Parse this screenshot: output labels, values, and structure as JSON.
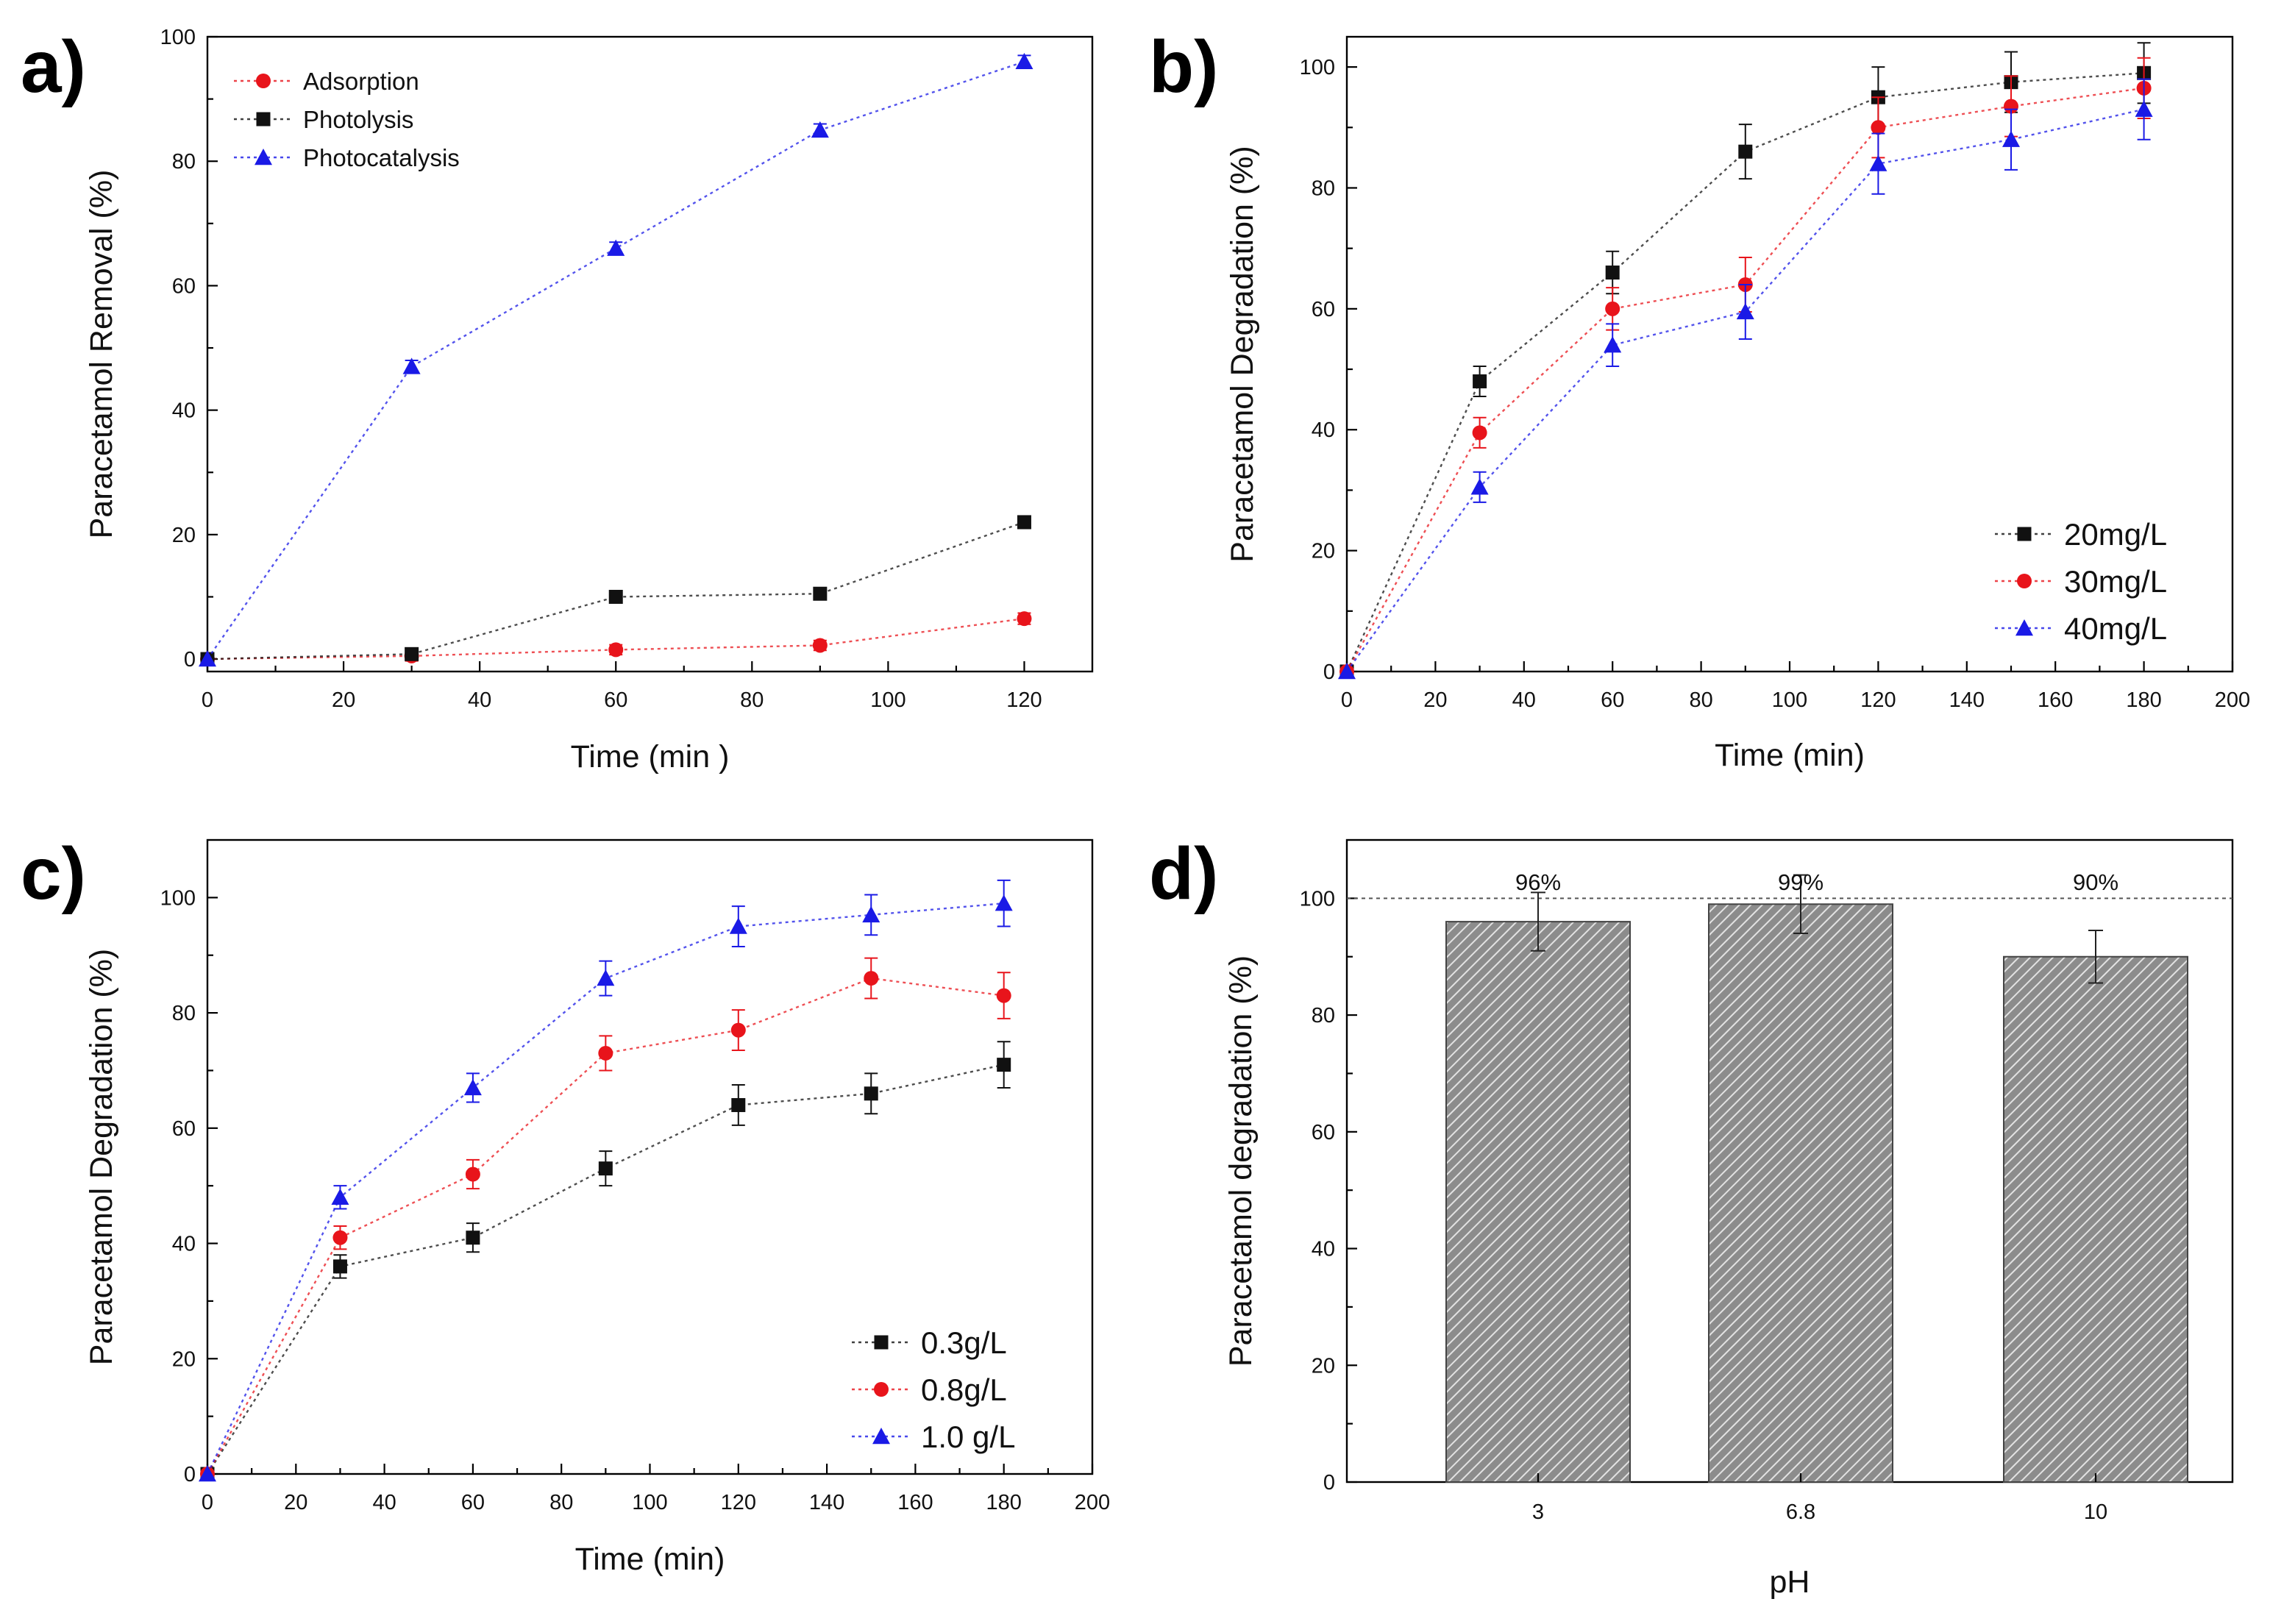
{
  "colors": {
    "black": "#111111",
    "red": "#e8141b",
    "blue": "#1a1ae6",
    "grid_dash": "#555555",
    "bar_fill": "#9a9a9a"
  },
  "chart_data": [
    {
      "panel": "a)",
      "type": "line",
      "xlabel": "Time (min )",
      "ylabel": "Paracetamol Removal (%)",
      "xlim": [
        0,
        130
      ],
      "ylim": [
        -2,
        100
      ],
      "xticks": [
        0,
        20,
        40,
        60,
        80,
        100,
        120
      ],
      "yticks": [
        0,
        20,
        40,
        60,
        80,
        100
      ],
      "legend_position": "top-left",
      "series": [
        {
          "name": "Adsorption",
          "color": "red",
          "marker": "circle",
          "x": [
            0,
            30,
            60,
            90,
            120
          ],
          "y": [
            0,
            0.5,
            1.5,
            2.2,
            6.5
          ],
          "err": [
            0,
            0.8,
            0.8,
            0.8,
            0.9
          ]
        },
        {
          "name": "Photolysis",
          "color": "black",
          "marker": "square",
          "x": [
            0,
            30,
            60,
            90,
            120
          ],
          "y": [
            0,
            0.8,
            10,
            10.5,
            22
          ],
          "err": [
            0,
            0.8,
            0.8,
            0.8,
            1.0
          ]
        },
        {
          "name": "Photocatalysis",
          "color": "blue",
          "marker": "triangle",
          "x": [
            0,
            30,
            60,
            90,
            120
          ],
          "y": [
            0,
            47,
            66,
            85,
            96
          ],
          "err": [
            0,
            1.0,
            1.0,
            1.0,
            1.0
          ]
        }
      ]
    },
    {
      "panel": "b)",
      "type": "line",
      "xlabel": "Time (min)",
      "ylabel": "Paracetamol Degradation (%)",
      "xlim": [
        0,
        200
      ],
      "ylim": [
        0,
        105
      ],
      "xticks": [
        0,
        20,
        40,
        60,
        80,
        100,
        120,
        140,
        160,
        180,
        200
      ],
      "yticks": [
        0,
        20,
        40,
        60,
        80,
        100
      ],
      "legend_position": "bottom-right",
      "series": [
        {
          "name": "20mg/L",
          "color": "black",
          "marker": "square",
          "x": [
            0,
            30,
            60,
            90,
            120,
            150,
            180
          ],
          "y": [
            0,
            48,
            66,
            86,
            95,
            97.5,
            99
          ],
          "err": [
            0,
            2.5,
            3.5,
            4.5,
            5,
            5,
            5
          ]
        },
        {
          "name": "30mg/L",
          "color": "red",
          "marker": "circle",
          "x": [
            0,
            30,
            60,
            90,
            120,
            150,
            180
          ],
          "y": [
            0,
            39.5,
            60,
            64,
            90,
            93.5,
            96.5
          ],
          "err": [
            0,
            2.5,
            3.5,
            4.5,
            5,
            5,
            5
          ]
        },
        {
          "name": "40mg/L",
          "color": "blue",
          "marker": "triangle",
          "x": [
            0,
            30,
            60,
            90,
            120,
            150,
            180
          ],
          "y": [
            0,
            30.5,
            54,
            59.5,
            84,
            88,
            93
          ],
          "err": [
            0,
            2.5,
            3.5,
            4.5,
            5,
            5,
            5
          ]
        }
      ]
    },
    {
      "panel": "c)",
      "type": "line",
      "xlabel": "Time (min)",
      "ylabel": "Paracetamol Degradation (%)",
      "xlim": [
        0,
        200
      ],
      "ylim": [
        0,
        110
      ],
      "xticks": [
        0,
        20,
        40,
        60,
        80,
        100,
        120,
        140,
        160,
        180,
        200
      ],
      "yticks": [
        0,
        20,
        40,
        60,
        80,
        100
      ],
      "legend_position": "bottom-right",
      "series": [
        {
          "name": "0.3g/L",
          "color": "black",
          "marker": "square",
          "x": [
            0,
            30,
            60,
            90,
            120,
            150,
            180
          ],
          "y": [
            0,
            36,
            41,
            53,
            64,
            66,
            71
          ],
          "err": [
            0,
            2,
            2.5,
            3,
            3.5,
            3.5,
            4
          ]
        },
        {
          "name": "0.8g/L",
          "color": "red",
          "marker": "circle",
          "x": [
            0,
            30,
            60,
            90,
            120,
            150,
            180
          ],
          "y": [
            0,
            41,
            52,
            73,
            77,
            86,
            83
          ],
          "err": [
            0,
            2,
            2.5,
            3,
            3.5,
            3.5,
            4
          ]
        },
        {
          "name": "1.0 g/L",
          "color": "blue",
          "marker": "triangle",
          "x": [
            0,
            30,
            60,
            90,
            120,
            150,
            180
          ],
          "y": [
            0,
            48,
            67,
            86,
            95,
            97,
            99
          ],
          "err": [
            0,
            2,
            2.5,
            3,
            3.5,
            3.5,
            4
          ]
        }
      ]
    },
    {
      "panel": "d)",
      "type": "bar",
      "xlabel": "pH",
      "ylabel": "Paracetamol degradation (%)",
      "ylim": [
        0,
        110
      ],
      "yticks": [
        0,
        20,
        40,
        60,
        80,
        100
      ],
      "reference_line": 100,
      "categories": [
        "3",
        "6.8",
        "10"
      ],
      "values": [
        96,
        99,
        90
      ],
      "err": [
        5,
        5,
        4.5
      ],
      "bar_labels": [
        "96%",
        "99%",
        "90%"
      ]
    }
  ]
}
